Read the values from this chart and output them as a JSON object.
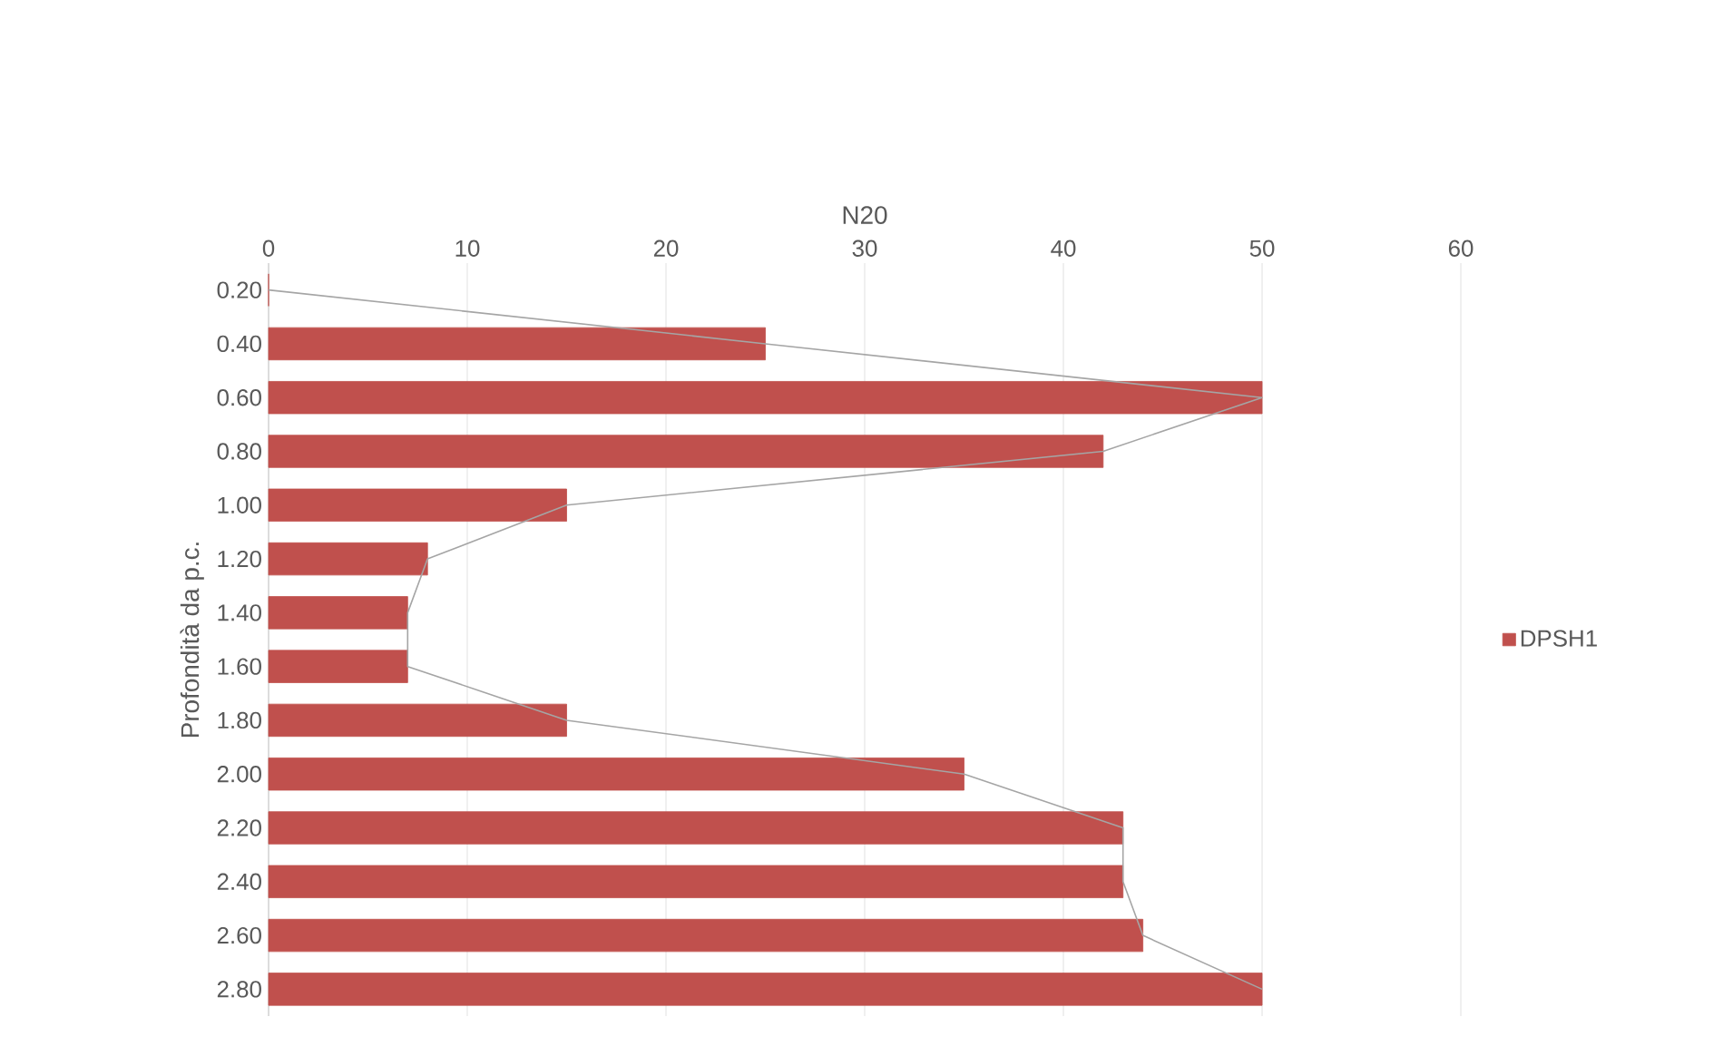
{
  "chart_data": {
    "type": "bar",
    "orientation": "horizontal",
    "xlabel": "N20",
    "ylabel": "Profondità da p.c.",
    "categories": [
      "0.20",
      "0.40",
      "0.60",
      "0.80",
      "1.00",
      "1.20",
      "1.40",
      "1.60",
      "1.80",
      "2.00",
      "2.20",
      "2.40",
      "2.60",
      "2.80"
    ],
    "series": [
      {
        "name": "DPSH1",
        "color": "#c0504d",
        "values": [
          0,
          25,
          50,
          42,
          15,
          8,
          7,
          7,
          15,
          35,
          43,
          43,
          44,
          50
        ]
      },
      {
        "type": "line",
        "color": "#a5a5a5",
        "values": [
          0,
          25,
          50,
          42,
          15,
          8,
          7,
          7,
          15,
          35,
          43,
          43,
          44,
          50
        ]
      }
    ],
    "xlim": [
      0,
      60
    ],
    "xticks": [
      0,
      10,
      20,
      30,
      40,
      50,
      60
    ],
    "grid": "x",
    "legend": "right"
  }
}
